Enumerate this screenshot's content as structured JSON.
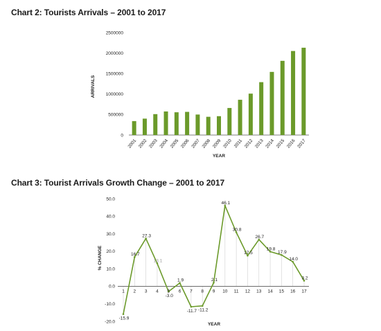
{
  "chart_data": [
    {
      "type": "bar",
      "title": "Chart 2: Tourists Arrivals – 2001 to 2017",
      "xlabel": "YEAR",
      "ylabel": "ARRIVALS",
      "ylim": [
        0,
        2500000
      ],
      "yticks": [
        "0",
        "500000",
        "1000000",
        "1500000",
        "2000000",
        "2500000"
      ],
      "grid": false,
      "color": "#6b9a2a",
      "categories": [
        "2001",
        "2002",
        "2003",
        "2004",
        "2005",
        "2006",
        "2007",
        "2008",
        "2009",
        "2010",
        "2011",
        "2012",
        "2013",
        "2014",
        "2015",
        "2016",
        "2017"
      ],
      "values": [
        340000,
        400000,
        510000,
        575000,
        555000,
        565000,
        500000,
        445000,
        460000,
        660000,
        860000,
        1010000,
        1290000,
        1540000,
        1810000,
        2050000,
        2130000
      ]
    },
    {
      "type": "line",
      "title": "Chart 3: Tourist Arrivals Growth Change – 2001 to 2017",
      "xlabel": "YEAR",
      "ylabel": "% CHANGE",
      "ylim": [
        -20,
        50
      ],
      "yticks": [
        "-20.0",
        "-10.0",
        "0.0",
        "10.0",
        "20.0",
        "30.0",
        "40.0",
        "50.0"
      ],
      "grid": false,
      "color": "#6b9a2a",
      "x": [
        "1",
        "2",
        "3",
        "4",
        "5",
        "6",
        "7",
        "8",
        "9",
        "10",
        "11",
        "12",
        "13",
        "14",
        "15",
        "16",
        "17"
      ],
      "values": [
        -15.9,
        16.7,
        27.3,
        13.1,
        -3.0,
        1.9,
        -11.7,
        -11.2,
        2.1,
        46.1,
        30.8,
        17.5,
        26.7,
        19.8,
        17.9,
        14.0,
        3.2
      ],
      "labels": [
        "-15.9",
        "16.7",
        "27.3",
        "13.1",
        "-3.0",
        "1.9",
        "-11.7",
        "-11.2",
        "2.1",
        "46.1",
        "30.8",
        "17.5",
        "26.7",
        "19.8",
        "17.9",
        "14.0",
        "3.2"
      ]
    }
  ]
}
